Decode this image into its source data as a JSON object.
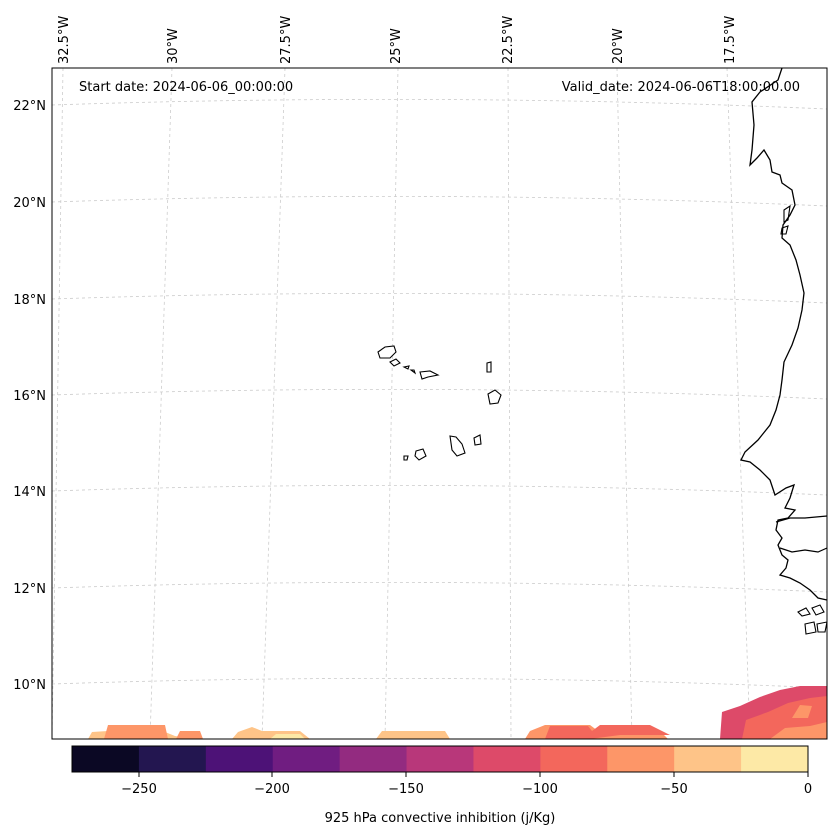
{
  "header": {
    "start_date": "Start date: 2024-06-06_00:00:00",
    "valid_date": "Valid_date: 2024-06-06T18:00:00.00"
  },
  "lon_labels": [
    "32.5°W",
    "30°W",
    "27.5°W",
    "25°W",
    "22.5°W",
    "20°W",
    "17.5°W"
  ],
  "lat_labels": [
    "22°N",
    "20°N",
    "18°N",
    "16°N",
    "14°N",
    "12°N",
    "10°N"
  ],
  "colorbar": {
    "label": "925 hPa convective inhibition (j/Kg)",
    "tick_labels": [
      "−250",
      "−200",
      "−150",
      "−100",
      "−50",
      "0"
    ],
    "colors": [
      "#0b0824",
      "#231650",
      "#4d1277",
      "#701d81",
      "#932b80",
      "#b8377a",
      "#dd4a69",
      "#f3675c",
      "#fd9668",
      "#fec488",
      "#fde9a6"
    ],
    "levels": [
      -275,
      -250,
      -225,
      -200,
      -175,
      -150,
      -125,
      -100,
      -75,
      -50,
      -25,
      0
    ]
  },
  "map": {
    "region": "Cabo Verde / West African coast",
    "extent": {
      "lon": [
        -33.0,
        -15.5
      ],
      "lat": [
        8.9,
        22.8
      ]
    }
  },
  "cin_field": {
    "units": "j/Kg",
    "values_range": [
      -125,
      0
    ]
  }
}
